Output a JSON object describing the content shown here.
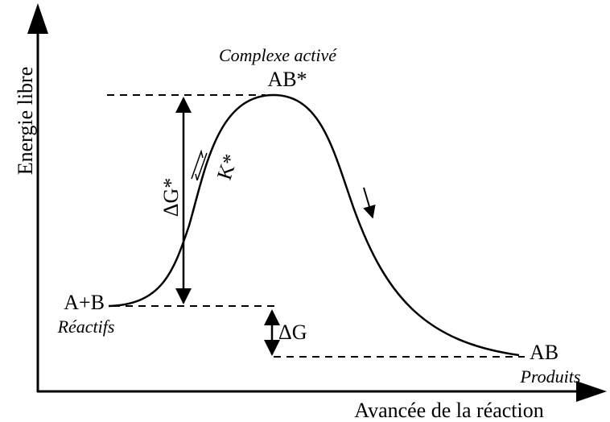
{
  "axis": {
    "y_label": "Energie libre",
    "x_label": "Avancée de la réaction"
  },
  "states": {
    "transition": {
      "caption": "Complexe activé",
      "label": "AB*"
    },
    "reactants": {
      "label": "A+B",
      "caption": "Réactifs"
    },
    "products": {
      "label": "AB",
      "caption": "Produits"
    }
  },
  "annotations": {
    "activation_energy": "ΔG*",
    "equilibrium": "K*",
    "free_energy": "ΔG"
  }
}
